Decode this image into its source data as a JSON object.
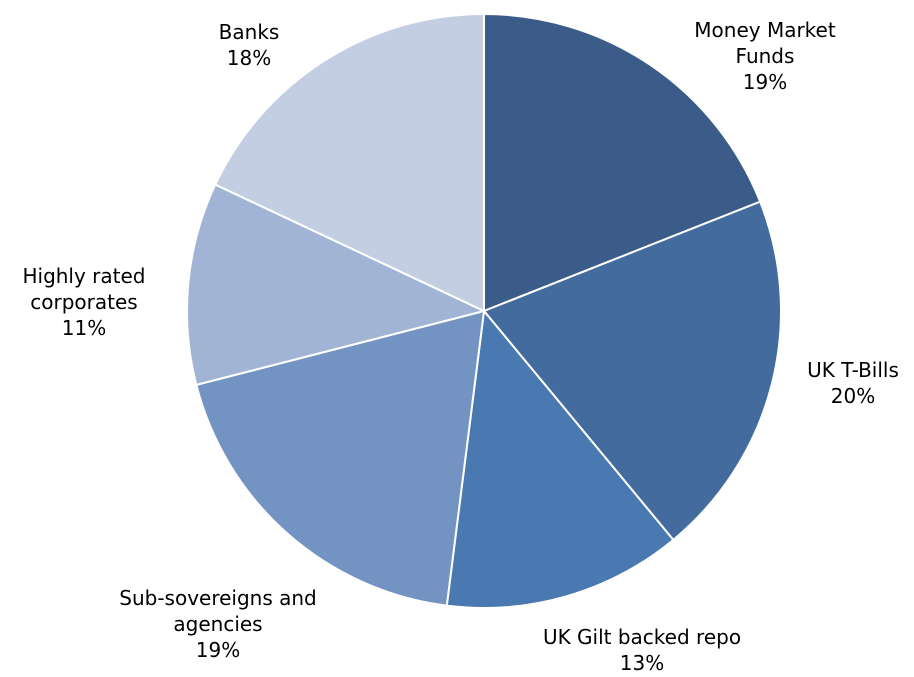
{
  "chart_data": {
    "type": "pie",
    "slices": [
      {
        "label_lines": [
          "Money Market",
          "Funds"
        ],
        "pct_label": "19%",
        "value": 19,
        "color": "#3b5c88"
      },
      {
        "label_lines": [
          "UK T-Bills"
        ],
        "pct_label": "20%",
        "value": 20,
        "color": "#436b9e"
      },
      {
        "label_lines": [
          "UK Gilt backed repo"
        ],
        "pct_label": "13%",
        "value": 13,
        "color": "#4a78b0"
      },
      {
        "label_lines": [
          "Sub-sovereigns and",
          "agencies"
        ],
        "pct_label": "19%",
        "value": 19,
        "color": "#7393c3"
      },
      {
        "label_lines": [
          "Highly rated",
          "corporates"
        ],
        "pct_label": "11%",
        "value": 11,
        "color": "#a2b4d5"
      },
      {
        "label_lines": [
          "Banks"
        ],
        "pct_label": "18%",
        "value": 18,
        "color": "#c3cee3"
      }
    ],
    "start_angle_deg": 0,
    "direction": "clockwise",
    "legend": "none"
  }
}
